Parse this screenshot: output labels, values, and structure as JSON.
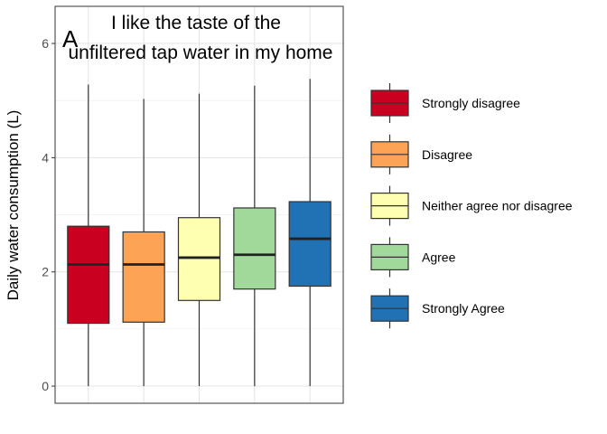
{
  "chart_data": {
    "type": "boxplot",
    "panel_letter": "A",
    "title_lines": [
      "I like the taste of the",
      "unfiltered tap water in my home"
    ],
    "xlabel": "",
    "ylabel": "Daily water consumption (L)",
    "ylim": [
      -0.3,
      6.65
    ],
    "yticks": [
      0,
      2,
      4,
      6
    ],
    "ytick_labels": [
      "0",
      "2",
      "4",
      "6"
    ],
    "grid": true,
    "legend_position": "right",
    "series": [
      {
        "name": "Strongly disagree",
        "color": "#ca0020",
        "whisker_low": 0,
        "q1": 1.1,
        "median": 2.13,
        "q3": 2.8,
        "whisker_high": 5.28
      },
      {
        "name": "Disagree",
        "color": "#fda355",
        "whisker_low": 0,
        "q1": 1.12,
        "median": 2.13,
        "q3": 2.7,
        "whisker_high": 5.03
      },
      {
        "name": "Neither agree nor disagree",
        "color": "#ffffb2",
        "whisker_low": 0,
        "q1": 1.5,
        "median": 2.25,
        "q3": 2.95,
        "whisker_high": 5.12
      },
      {
        "name": "Agree",
        "color": "#a1d99b",
        "whisker_low": 0,
        "q1": 1.7,
        "median": 2.3,
        "q3": 3.12,
        "whisker_high": 5.26
      },
      {
        "name": "Strongly Agree",
        "color": "#2171b5",
        "whisker_low": 0,
        "q1": 1.75,
        "median": 2.58,
        "q3": 3.23,
        "whisker_high": 5.38
      }
    ]
  }
}
